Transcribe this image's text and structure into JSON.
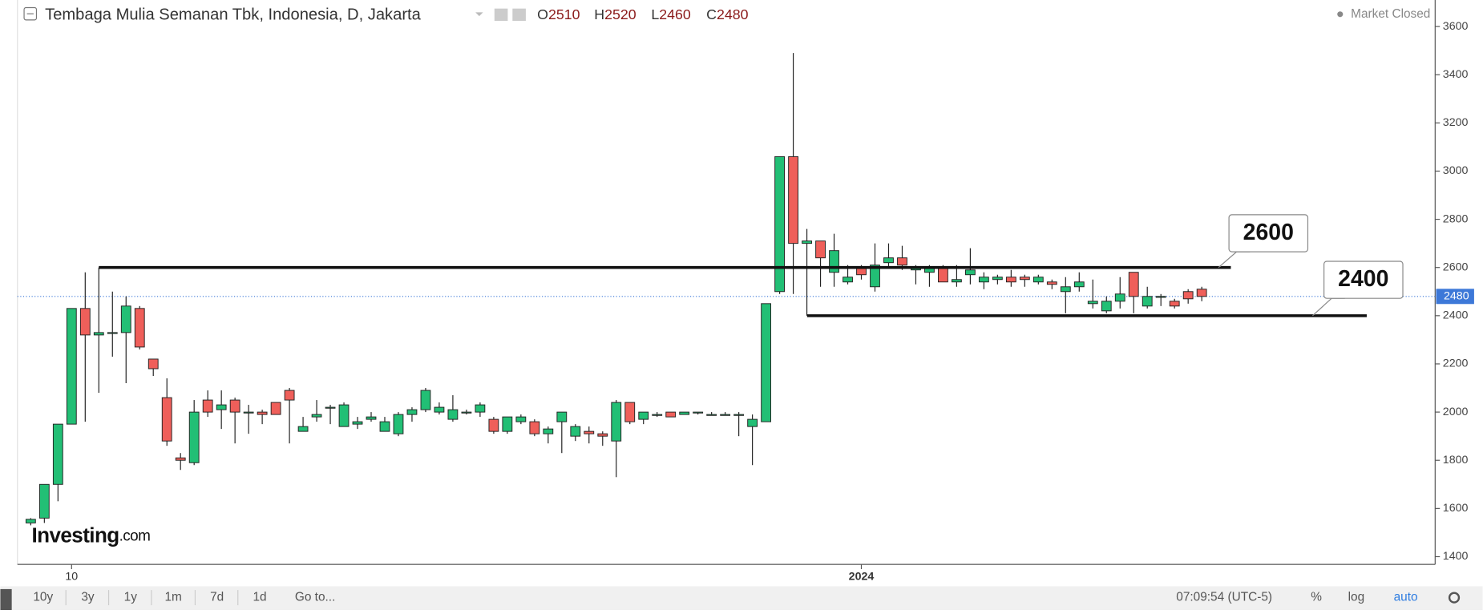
{
  "chart_data": {
    "type": "candlestick",
    "title": "Tembaga Mulia Semanan Tbk, Indonesia, D, Jakarta",
    "header": [
      {
        "label": "O",
        "value": 2510
      },
      {
        "label": "H",
        "value": 2520
      },
      {
        "label": "L",
        "value": 2460
      },
      {
        "label": "C",
        "value": 2480
      }
    ],
    "status": "Market Closed",
    "categories": [
      null,
      null,
      null,
      "10",
      null,
      null,
      null,
      null,
      null,
      null,
      null,
      null,
      null,
      null,
      null,
      null,
      null,
      null,
      null,
      null,
      null,
      null,
      null,
      null,
      null,
      null,
      null,
      null,
      null,
      null,
      null,
      null,
      null,
      null,
      null,
      null,
      null,
      null,
      null,
      null,
      null,
      null,
      null,
      null,
      null,
      null,
      null,
      null,
      null,
      null,
      null,
      null,
      null,
      null,
      null,
      null,
      null,
      null,
      null,
      null,
      null,
      "2024",
      null,
      null,
      null,
      null,
      null,
      null,
      null,
      null,
      null,
      null,
      null,
      null,
      null,
      null,
      null,
      null,
      null,
      null,
      null,
      null,
      null,
      null,
      null,
      null,
      null
    ],
    "open": [
      1540,
      1560,
      1700,
      1950,
      2430,
      2320,
      2330,
      2330,
      2430,
      2220,
      2060,
      1810,
      1790,
      2050,
      2010,
      2050,
      2000,
      2000,
      2040,
      2090,
      1920,
      1980,
      2020,
      1940,
      1950,
      1970,
      1920,
      1910,
      1990,
      2010,
      2000,
      1970,
      2000,
      2000,
      1970,
      1920,
      1960,
      1960,
      1910,
      1960,
      1900,
      1920,
      1910,
      1880,
      2040,
      1970,
      1990,
      2000,
      1990,
      2000,
      1990,
      1990,
      1990,
      1940,
      1960,
      2500,
      3060,
      2700,
      2710,
      2580,
      2540,
      2600,
      2520,
      2620,
      2640,
      2590,
      2580,
      2600,
      2540,
      2570,
      2540,
      2550,
      2560,
      2560,
      2540,
      2540,
      2500,
      2520,
      2450,
      2420,
      2460,
      2580,
      2440,
      2480,
      2460,
      2500,
      2510
    ],
    "high": [
      1560,
      1700,
      1950,
      2430,
      2580,
      2600,
      2500,
      2480,
      2440,
      2220,
      2140,
      1830,
      2050,
      2090,
      2090,
      2060,
      2030,
      2010,
      2040,
      2100,
      1980,
      2050,
      2030,
      2040,
      1980,
      2000,
      1980,
      2000,
      2020,
      2100,
      2040,
      2070,
      2010,
      2040,
      1980,
      1980,
      1990,
      1970,
      1940,
      2000,
      1950,
      1940,
      1920,
      2050,
      2040,
      2000,
      2000,
      2000,
      2000,
      2000,
      2000,
      2000,
      2000,
      1990,
      2450,
      3060,
      3490,
      2760,
      2710,
      2740,
      2610,
      2610,
      2700,
      2700,
      2690,
      2610,
      2610,
      2610,
      2610,
      2680,
      2580,
      2570,
      2590,
      2570,
      2570,
      2550,
      2560,
      2580,
      2550,
      2480,
      2560,
      2580,
      2520,
      2490,
      2470,
      2510,
      2520
    ],
    "low": [
      1530,
      1540,
      1630,
      1950,
      1960,
      2080,
      2230,
      2120,
      2260,
      2150,
      1860,
      1760,
      1780,
      1980,
      1930,
      1870,
      1910,
      1950,
      1990,
      1870,
      1920,
      1960,
      1950,
      1940,
      1930,
      1960,
      1920,
      1900,
      1960,
      2000,
      1990,
      1960,
      1990,
      1980,
      1910,
      1910,
      1950,
      1900,
      1870,
      1830,
      1880,
      1870,
      1860,
      1730,
      1950,
      1950,
      1980,
      1980,
      1990,
      1990,
      1990,
      1990,
      1900,
      1780,
      1960,
      2490,
      2490,
      2400,
      2520,
      2520,
      2530,
      2550,
      2500,
      2600,
      2590,
      2530,
      2520,
      2540,
      2520,
      2530,
      2510,
      2530,
      2520,
      2520,
      2530,
      2510,
      2410,
      2500,
      2430,
      2410,
      2430,
      2410,
      2430,
      2440,
      2430,
      2450,
      2460
    ],
    "close": [
      1555,
      1700,
      1950,
      2430,
      2320,
      2330,
      2330,
      2440,
      2270,
      2180,
      1880,
      1800,
      2000,
      2000,
      2030,
      2000,
      2000,
      1990,
      1990,
      2050,
      1940,
      1990,
      2020,
      2030,
      1960,
      1980,
      1960,
      1990,
      2010,
      2090,
      2020,
      2010,
      2000,
      2030,
      1920,
      1980,
      1980,
      1910,
      1930,
      2000,
      1940,
      1910,
      1900,
      2040,
      1960,
      2000,
      1990,
      1980,
      2000,
      2000,
      1990,
      1990,
      1990,
      1970,
      2450,
      3060,
      2700,
      2710,
      2640,
      2670,
      2560,
      2570,
      2610,
      2640,
      2610,
      2600,
      2600,
      2540,
      2550,
      2590,
      2560,
      2560,
      2540,
      2550,
      2560,
      2530,
      2520,
      2540,
      2460,
      2460,
      2490,
      2480,
      2480,
      2480,
      2440,
      2470,
      2480
    ],
    "up_color": "#22bf75",
    "down_color": "#ef5f5a",
    "last_price": 2480,
    "levels": [
      2600,
      2400
    ],
    "ylim": [
      1368,
      3710
    ],
    "yticks": [
      1400,
      1600,
      1800,
      2000,
      2200,
      2400,
      2600,
      2800,
      3000,
      3200,
      3400,
      3600
    ]
  },
  "logo": {
    "name": "Investing",
    "suffix": ".com"
  },
  "toolbar": {
    "ranges": [
      "10y",
      "3y",
      "1y",
      "1m",
      "7d",
      "1d"
    ],
    "goto": "Go to...",
    "clock": "07:09:54 (UTC-5)",
    "percent": "%",
    "log": "log",
    "auto": "auto"
  }
}
